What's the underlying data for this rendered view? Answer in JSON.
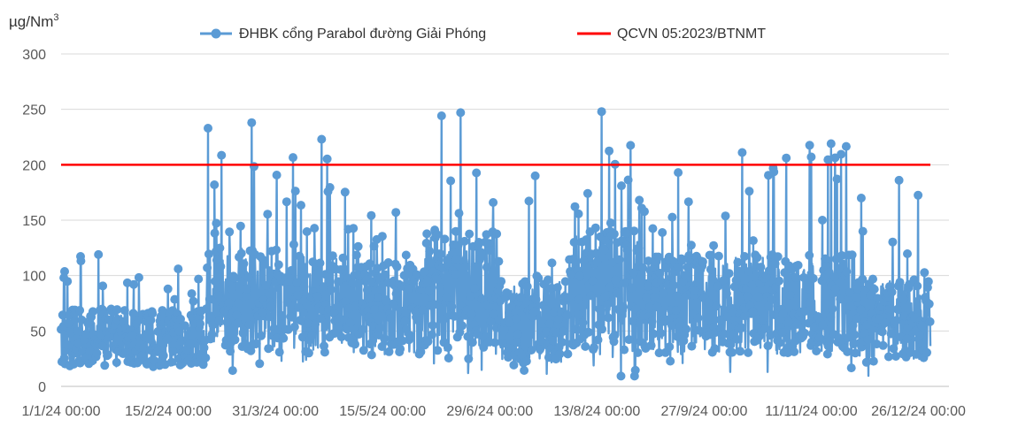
{
  "chart_data": {
    "type": "line",
    "title": "",
    "ylabel": "µg/Nm",
    "ylabel_sup": "3",
    "xlabel": "",
    "ylim": [
      0,
      300
    ],
    "yticks": [
      0,
      50,
      100,
      150,
      200,
      250,
      300
    ],
    "xticks": [
      "1/1/24 00:00",
      "15/2/24 00:00",
      "31/3/24 00:00",
      "15/5/24 00:00",
      "29/6/24 00:00",
      "13/8/24 00:00",
      "27/9/24 00:00",
      "11/11/24 00:00",
      "26/12/24 00:00"
    ],
    "grid": "horizontal",
    "legend_position": "top",
    "series": [
      {
        "name": "ĐHBK cổng Parabol đường Giải Phóng",
        "kind": "line-markers",
        "color": "#5B9BD5",
        "x_start": "1/1/24 00:00",
        "x_end": "31/12/24 00:00",
        "summary": [
          {
            "month": "Jan",
            "low": 18,
            "typical": 50,
            "peak": 119
          },
          {
            "month": "Feb",
            "low": 15,
            "typical": 50,
            "peak": 106
          },
          {
            "month": "Mar",
            "low": 12,
            "typical": 90,
            "peak": 238
          },
          {
            "month": "Apr",
            "low": 15,
            "typical": 85,
            "peak": 223
          },
          {
            "month": "May",
            "low": 20,
            "typical": 80,
            "peak": 157
          },
          {
            "month": "Jun",
            "low": 10,
            "typical": 100,
            "peak": 247
          },
          {
            "month": "Jul",
            "low": 8,
            "typical": 70,
            "peak": 190
          },
          {
            "month": "Aug",
            "low": 2,
            "typical": 100,
            "peak": 248
          },
          {
            "month": "Sep",
            "low": 10,
            "typical": 85,
            "peak": 193
          },
          {
            "month": "Oct",
            "low": 12,
            "typical": 85,
            "peak": 211
          },
          {
            "month": "Nov",
            "low": 10,
            "typical": 85,
            "peak": 219
          },
          {
            "month": "Dec",
            "low": 5,
            "typical": 70,
            "peak": 186
          }
        ]
      },
      {
        "name": "QCVN 05:2023/BTNMT",
        "kind": "line",
        "color": "#FF0000",
        "value": 200
      }
    ]
  }
}
